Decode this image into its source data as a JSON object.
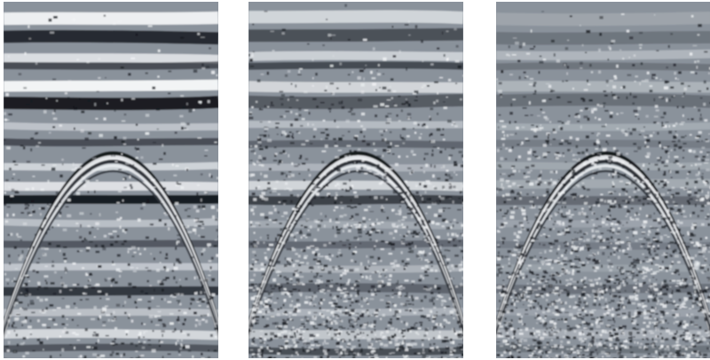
{
  "panels": [
    {
      "noise_level": 0.28,
      "band_strength": 1.0,
      "trace_color": "#8a929b"
    },
    {
      "noise_level": 0.62,
      "band_strength": 0.7,
      "trace_color": "#8a929b"
    },
    {
      "noise_level": 0.78,
      "band_strength": 0.35,
      "trace_color": "#8a929b"
    }
  ],
  "colors": {
    "background": "#ffffff",
    "mid_gray": "#8a929b",
    "dark": "#0d0f14",
    "light": "#f4f6f8"
  }
}
